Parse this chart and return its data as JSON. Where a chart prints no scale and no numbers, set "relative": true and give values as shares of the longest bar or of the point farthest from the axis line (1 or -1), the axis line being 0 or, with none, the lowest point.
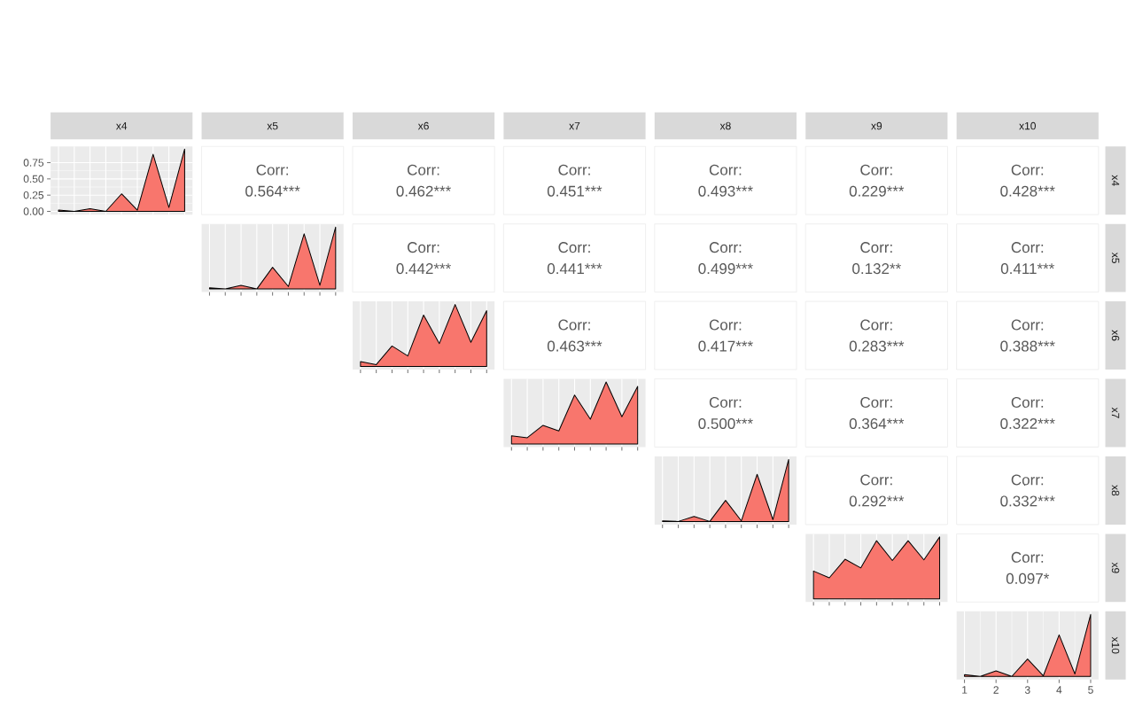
{
  "chart_data": [
    {
      "type": "other",
      "categories": [
        "x4",
        "x5",
        "x6",
        "x7",
        "x8",
        "x9",
        "x10"
      ],
      "y_categories": [
        "x4",
        "x5",
        "x6",
        "x7",
        "x8",
        "x9",
        "x10"
      ],
      "annotations": [
        "Corr: 0.564***",
        "Corr: 0.462***",
        "Corr: 0.451***",
        "Corr: 0.493***",
        "Corr: 0.229***",
        "Corr: 0.428***",
        "Corr: 0.442***",
        "Corr: 0.441***",
        "Corr: 0.499***",
        "Corr: 0.132**",
        "Corr: 0.411***",
        "Corr: 0.463***",
        "Corr: 0.417***",
        "Corr: 0.283***",
        "Corr: 0.388***",
        "Corr: 0.500***",
        "Corr: 0.364***",
        "Corr: 0.322***",
        "Corr: 0.292***",
        "Corr: 0.332***",
        "Corr: 0.097*"
      ]
    },
    {
      "type": "area",
      "categories": [
        null,
        null,
        null,
        null,
        null,
        null,
        null,
        null,
        null
      ],
      "values": [
        0.02,
        0.0,
        0.04,
        0.0,
        0.27,
        0.02,
        0.88,
        0.06,
        0.96
      ],
      "color": "#f8766d",
      "ylim": [
        -0.05,
        1.0
      ],
      "yticks": [
        {
          "value": 0,
          "label": "0.00"
        },
        {
          "value": 0.25,
          "label": "0.25"
        },
        {
          "value": 0.5,
          "label": "0.50"
        },
        {
          "value": 0.75,
          "label": "0.75"
        }
      ],
      "tick_labels": "y",
      "grid": true
    },
    {
      "type": "area",
      "categories": [
        null,
        null,
        null,
        null,
        null,
        null,
        null,
        null,
        null
      ],
      "values": [
        0.02,
        0.0,
        0.06,
        0.0,
        0.35,
        0.04,
        0.89,
        0.06,
        1.0
      ],
      "color": "#f8766d",
      "relative": true,
      "grid": "x"
    },
    {
      "type": "area",
      "categories": [
        null,
        null,
        null,
        null,
        null,
        null,
        null,
        null,
        null
      ],
      "values": [
        0.08,
        0.03,
        0.33,
        0.17,
        0.83,
        0.37,
        1.0,
        0.39,
        0.9
      ],
      "color": "#f8766d",
      "relative": true,
      "grid": "x"
    },
    {
      "type": "area",
      "categories": [
        null,
        null,
        null,
        null,
        null,
        null,
        null,
        null,
        null
      ],
      "values": [
        0.13,
        0.1,
        0.3,
        0.21,
        0.79,
        0.4,
        1.0,
        0.44,
        0.93
      ],
      "color": "#f8766d",
      "relative": true,
      "grid": "x"
    },
    {
      "type": "area",
      "categories": [
        null,
        null,
        null,
        null,
        null,
        null,
        null,
        null,
        null
      ],
      "values": [
        0.01,
        0.0,
        0.08,
        0.0,
        0.34,
        0.01,
        0.76,
        0.03,
        1.0
      ],
      "color": "#f8766d",
      "relative": true,
      "grid": "x"
    },
    {
      "type": "area",
      "categories": [
        null,
        null,
        null,
        null,
        null,
        null,
        null,
        null,
        null
      ],
      "values": [
        0.45,
        0.34,
        0.64,
        0.5,
        0.94,
        0.62,
        0.94,
        0.63,
        1.0
      ],
      "color": "#f8766d",
      "relative": true,
      "grid": "x"
    },
    {
      "type": "area",
      "x": [
        1,
        1.5,
        2,
        2.5,
        3,
        3.5,
        4,
        4.5,
        5
      ],
      "values": [
        0.03,
        0.0,
        0.09,
        0.0,
        0.28,
        0.01,
        0.67,
        0.04,
        1.0
      ],
      "color": "#f8766d",
      "relative": true,
      "xlim": [
        0.75,
        5.25
      ],
      "xticks": [
        1,
        2,
        3,
        4,
        5
      ],
      "tick_labels": "x",
      "grid": "x"
    }
  ]
}
